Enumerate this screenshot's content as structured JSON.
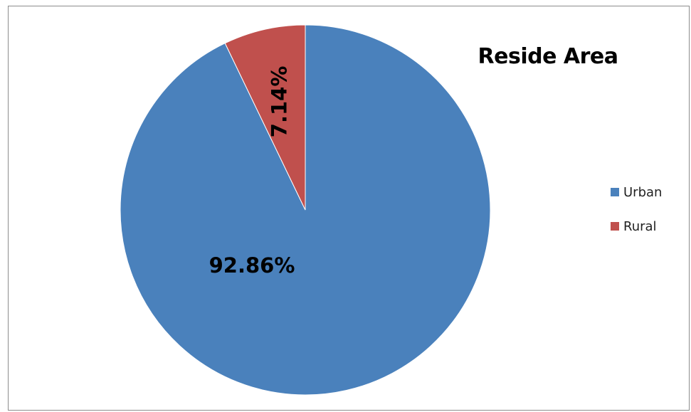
{
  "chart_data": {
    "type": "pie",
    "title": "Reside Area",
    "categories": [
      "Urban",
      "Rural"
    ],
    "values": [
      92.86,
      7.14
    ],
    "data_labels": [
      "92.86%",
      "7.14%"
    ],
    "colors": [
      "#4a81bc",
      "#c0504d"
    ],
    "legend_placement": "right"
  }
}
